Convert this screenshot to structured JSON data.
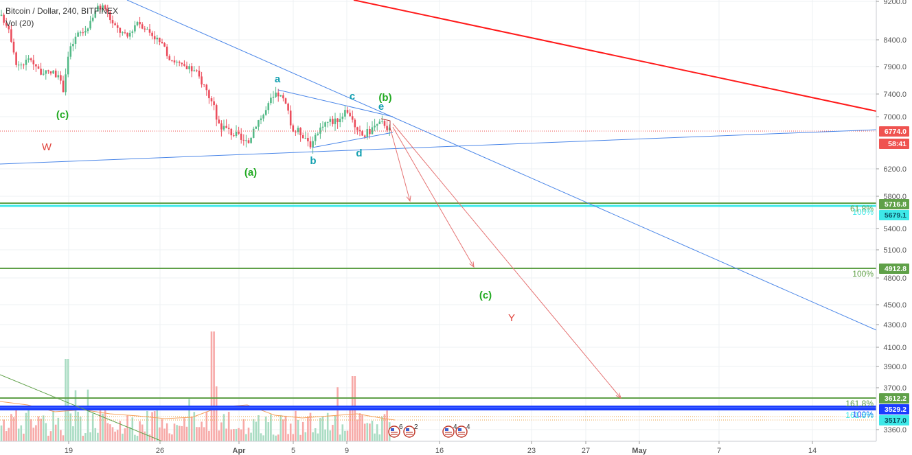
{
  "header": {
    "title": "Bitcoin / Dollar, 240, BITFINEX",
    "volume_label": "Vol (20)"
  },
  "chart_data": {
    "type": "candlestick",
    "symbol": "Bitcoin / Dollar",
    "interval": "240",
    "exchange": "BITFINEX",
    "grid": true,
    "y_axis": {
      "position": "right",
      "ticks": [
        "9200.0",
        "8400.0",
        "7900.0",
        "7400.0",
        "7000.0",
        "6200.0",
        "5800.0",
        "5400.0",
        "5100.0",
        "4800.0",
        "4500.0",
        "4300.0",
        "4100.0",
        "3900.0",
        "3700.0",
        "3360.0"
      ],
      "ylim": [
        3360,
        9200
      ]
    },
    "x_axis": {
      "ticks": [
        "19",
        "26",
        "Apr",
        "5",
        "9",
        "16",
        "23",
        "27",
        "May",
        "7",
        "14"
      ]
    },
    "price_badges": [
      {
        "label": "6774.0",
        "color": "#ef5350",
        "text_color": "#ffffff"
      },
      {
        "label": "58:41",
        "color": "#ef5350",
        "text_color": "#ffffff"
      },
      {
        "label": "5716.8",
        "color": "#5fa048",
        "text_color": "#ffffff"
      },
      {
        "label": "5679.1",
        "color": "#3ee8e8",
        "text_color": "#0a5060"
      },
      {
        "label": "4912.8",
        "color": "#5fa048",
        "text_color": "#ffffff"
      },
      {
        "label": "3612.2",
        "color": "#5fa048",
        "text_color": "#ffffff"
      },
      {
        "label": "3529.2",
        "color": "#1a3cff",
        "text_color": "#ffffff"
      },
      {
        "label": "3517.0",
        "color": "#3ee8e8",
        "text_color": "#0a5060"
      }
    ],
    "fib_labels": [
      {
        "text": "61.8%",
        "color": "#5fa048"
      },
      {
        "text": "100%",
        "color": "#3ee8e8"
      },
      {
        "text": "100%",
        "color": "#5fa048"
      },
      {
        "text": "161.8%",
        "color": "#5fa048"
      },
      {
        "text": "100%",
        "color": "#1a3cff"
      },
      {
        "text": "161.8%",
        "color": "#3ee8e8"
      }
    ],
    "wave_labels": [
      {
        "text": "(c)",
        "color": "#22aa22"
      },
      {
        "text": "W",
        "color": "#e0413a"
      },
      {
        "text": "(a)",
        "color": "#22aa22"
      },
      {
        "text": "a",
        "color": "#14a0b0"
      },
      {
        "text": "b",
        "color": "#14a0b0"
      },
      {
        "text": "c",
        "color": "#14a0b0"
      },
      {
        "text": "d",
        "color": "#14a0b0"
      },
      {
        "text": "e",
        "color": "#14a0b0"
      },
      {
        "text": "(b)",
        "color": "#22aa22"
      },
      {
        "text": "(c)",
        "color": "#22aa22"
      },
      {
        "text": "Y",
        "color": "#e0413a"
      }
    ],
    "event_markers": [
      {
        "count": "6"
      },
      {
        "count": "2"
      },
      {
        "count": "4"
      },
      {
        "count": "4"
      }
    ],
    "colors": {
      "up": "#53b987",
      "down": "#eb4d5c",
      "vol_up": "#a9dcc3",
      "vol_down": "#f7a9a7",
      "trendline": "#4a86e8",
      "red_line": "#ff1a1a",
      "projection": "#e57373",
      "green_level": "#5fa048",
      "cyan_level": "#3ee8e8",
      "blue_level": "#1a3cff"
    }
  }
}
